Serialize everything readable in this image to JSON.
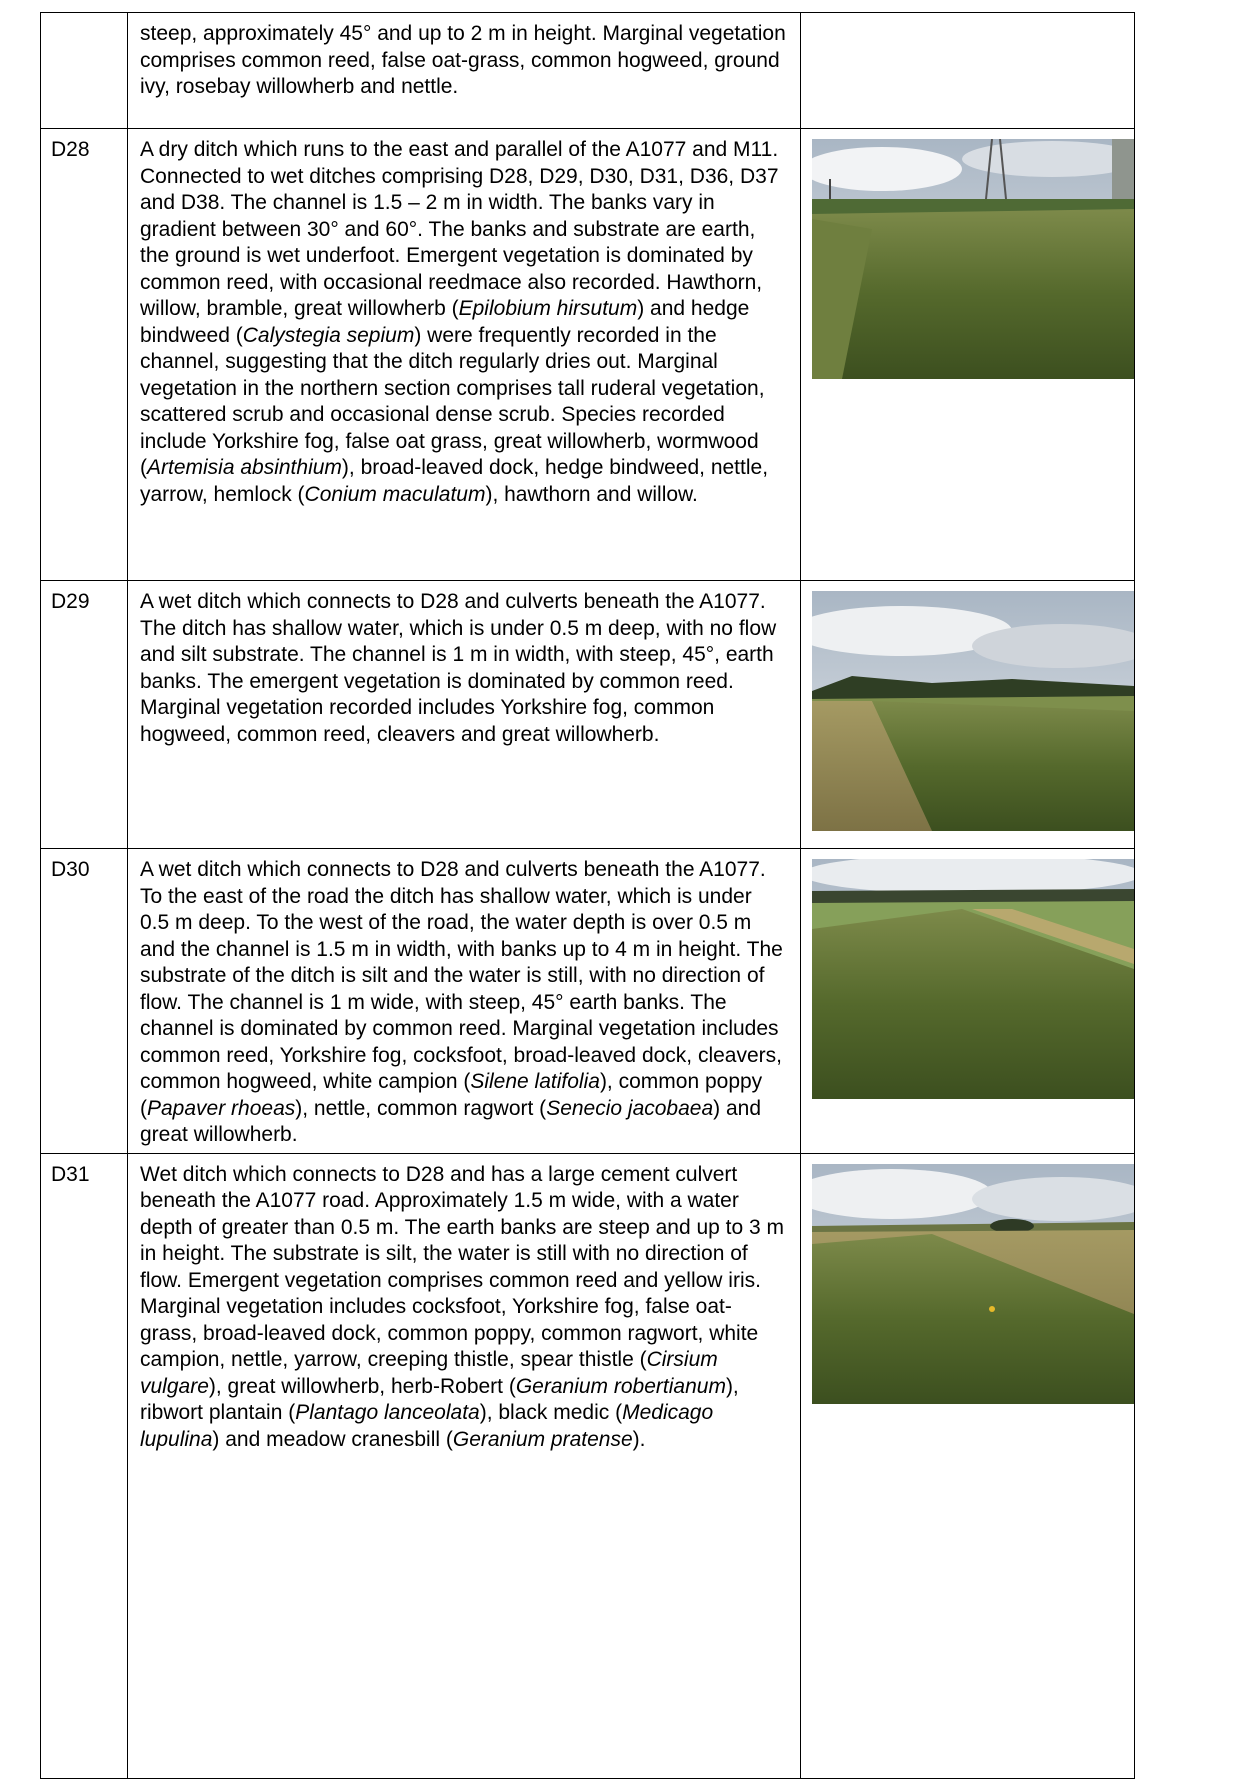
{
  "table": {
    "rows": [
      {
        "description": [
          "steep, approximately 45° and up to 2 m in height. Marginal vegetation comprises common reed, false oat-grass, common hogweed, ground ivy, rosebay willowherb and nettle."
        ]
      },
      {
        "id": "D28",
        "description": [
          "A dry ditch which runs to the east and parallel of the A1077 and M11. Connected to wet ditches comprising D28, D29, D30, D31, D36, D37 and D38. The channel is 1.5 – 2 m in width. The banks vary in gradient between 30° and 60°. The banks and substrate are earth, the ground is wet underfoot. Emergent vegetation is dominated by common reed, with occasional reedmace also recorded. Hawthorn, willow, bramble, great willowherb (",
          {
            "italic": "Epilobium hirsutum"
          },
          ") and hedge bindweed (",
          {
            "italic": "Calystegia sepium"
          },
          ") were frequently recorded in the channel, suggesting that the ditch regularly dries out. Marginal vegetation in the northern section comprises tall ruderal vegetation, scattered scrub and occasional dense scrub. Species recorded include Yorkshire fog, false oat grass, great willowherb, wormwood (",
          {
            "italic": "Artemisia absinthium"
          },
          "), broad-leaved dock, hedge bindweed, nettle, yarrow, hemlock (",
          {
            "italic": "Conium maculatum"
          },
          "), hawthorn and willow."
        ]
      },
      {
        "id": "D29",
        "description": [
          "A wet ditch which connects to D28 and culverts beneath the A1077. The ditch has shallow water, which is under 0.5 m deep, with no flow and silt substrate. The channel is 1 m in width, with steep, 45°, earth banks. The emergent vegetation is dominated by common reed. Marginal vegetation recorded includes Yorkshire fog, common hogweed, common reed, cleavers and great willowherb."
        ]
      },
      {
        "id": "D30",
        "description": [
          "A wet ditch which connects to D28 and culverts beneath the A1077. To the east of the road the ditch has shallow water, which is under 0.5 m deep. To the west of the road, the water depth is over 0.5 m and the channel is 1.5 m in width, with banks up to 4 m in height. The substrate of the ditch is silt and the water is still, with no direction of flow. The channel is 1 m wide, with steep, 45° earth banks. The channel is dominated by common reed. Marginal vegetation includes common reed, Yorkshire fog, cocksfoot, broad-leaved dock, cleavers, common hogweed, white campion (",
          {
            "italic": "Silene latifolia"
          },
          "), common poppy (",
          {
            "italic": "Papaver rhoeas"
          },
          "), nettle, common ragwort (",
          {
            "italic": "Senecio jacobaea"
          },
          ") and great willowherb."
        ]
      },
      {
        "id": "D31",
        "description": [
          "Wet ditch which connects to D28 and has a large cement culvert beneath the A1077 road. Approximately 1.5 m wide, with a water depth of greater than 0.5 m. The earth banks are steep and up to 3 m in height. The substrate is silt, the water is still with no direction of flow. Emergent vegetation comprises common reed and yellow iris. Marginal vegetation includes cocksfoot, Yorkshire fog, false oat-grass, broad-leaved dock, common poppy, common ragwort, white campion, nettle, yarrow, creeping thistle, spear thistle (",
          {
            "italic": "Cirsium vulgare"
          },
          "), great willowherb, herb-Robert (",
          {
            "italic": "Geranium robertianum"
          },
          "), ribwort plantain (",
          {
            "italic": "Plantago lanceolata"
          },
          "), black medic (",
          {
            "italic": "Medicago lupulina"
          },
          ") and meadow cranesbill (",
          {
            "italic": "Geranium pratense"
          },
          ")."
        ]
      }
    ]
  }
}
